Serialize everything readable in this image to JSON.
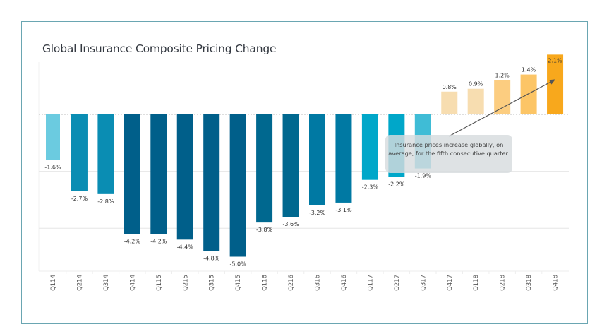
{
  "chart_data": {
    "type": "bar",
    "title": "Global Insurance Composite Pricing Change",
    "xlabel": "",
    "ylabel": "",
    "ylim": [
      -5.5,
      2.1
    ],
    "grid": true,
    "gridlines": [
      0,
      -2,
      -4
    ],
    "categories": [
      "Q114",
      "Q214",
      "Q314",
      "Q414",
      "Q115",
      "Q215",
      "Q315",
      "Q415",
      "Q116",
      "Q216",
      "Q316",
      "Q416",
      "Q117",
      "Q217",
      "Q317",
      "Q417",
      "Q118",
      "Q218",
      "Q318",
      "Q418"
    ],
    "values": [
      -1.6,
      -2.7,
      -2.8,
      -4.2,
      -4.2,
      -4.4,
      -4.8,
      -5.0,
      -3.8,
      -3.6,
      -3.2,
      -3.1,
      -2.3,
      -2.2,
      -1.9,
      0.8,
      0.9,
      1.2,
      1.4,
      2.1
    ],
    "data_labels": [
      "-1.6%",
      "-2.7%",
      "-2.8%",
      "-4.2%",
      "-4.2%",
      "-4.4%",
      "-4.8%",
      "-5.0%",
      "-3.8%",
      "-3.6%",
      "-3.2%",
      "-3.1%",
      "-2.3%",
      "-2.2%",
      "-1.9%",
      "0.8%",
      "0.9%",
      "1.2%",
      "1.4%",
      "2.1%"
    ],
    "colors": [
      "#6bcbe0",
      "#0a8db3",
      "#0a8db3",
      "#005f8a",
      "#005f8a",
      "#005f8a",
      "#005f8a",
      "#005f8a",
      "#00688f",
      "#00688f",
      "#0079a3",
      "#0079a3",
      "#00a7c9",
      "#00a7c9",
      "#3fbcd6",
      "#f7ddb0",
      "#f7ddb0",
      "#fccd80",
      "#fcc566",
      "#f8a81c"
    ],
    "annotation": {
      "text": "Insurance prices increase globally, on average, for the fifth consecutive quarter.",
      "points_to": "Q418"
    },
    "legend": "none"
  }
}
